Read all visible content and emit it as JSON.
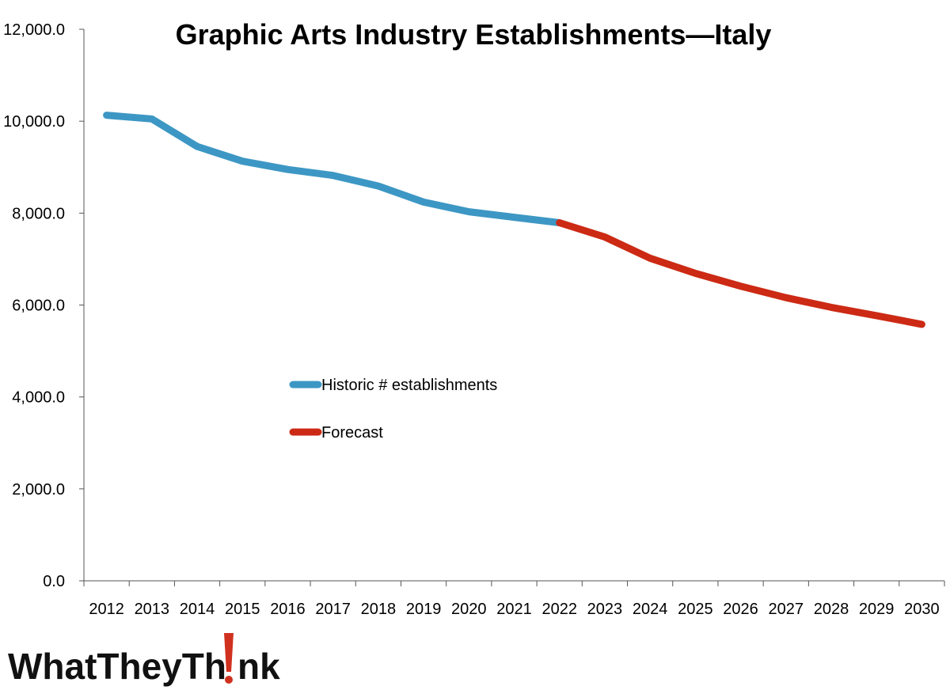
{
  "chart_data": {
    "type": "line",
    "title": "Graphic Arts Industry Establishments—Italy",
    "xlabel": "",
    "ylabel": "",
    "categories": [
      "2012",
      "2013",
      "2014",
      "2015",
      "2016",
      "2017",
      "2018",
      "2019",
      "2020",
      "2021",
      "2022",
      "2023",
      "2024",
      "2025",
      "2026",
      "2027",
      "2028",
      "2029",
      "2030"
    ],
    "ylim": [
      0,
      12000
    ],
    "yticks": [
      0,
      2000,
      4000,
      6000,
      8000,
      10000,
      12000
    ],
    "ytick_labels": [
      "0.0",
      "2,000.0",
      "4,000.0",
      "6,000.0",
      "8,000.0",
      "10,000.0",
      "12,000.0"
    ],
    "grid": false,
    "legend_position": "center-left",
    "series": [
      {
        "name": "Historic # establishments",
        "color": "#3D97C4",
        "x": [
          "2012",
          "2013",
          "2014",
          "2015",
          "2016",
          "2017",
          "2018",
          "2019",
          "2020",
          "2021",
          "2022"
        ],
        "values": [
          10130,
          10050,
          9450,
          9130,
          8950,
          8820,
          8590,
          8240,
          8030,
          7910,
          7790
        ]
      },
      {
        "name": "Forecast",
        "color": "#CC2A14",
        "x": [
          "2022",
          "2023",
          "2024",
          "2025",
          "2026",
          "2027",
          "2028",
          "2029",
          "2030"
        ],
        "values": [
          7790,
          7480,
          7020,
          6690,
          6410,
          6160,
          5950,
          5770,
          5580
        ]
      }
    ]
  },
  "logo": {
    "text_before": "WhatTheyTh",
    "text_after": "nk",
    "accent_color": "#D0311F"
  }
}
